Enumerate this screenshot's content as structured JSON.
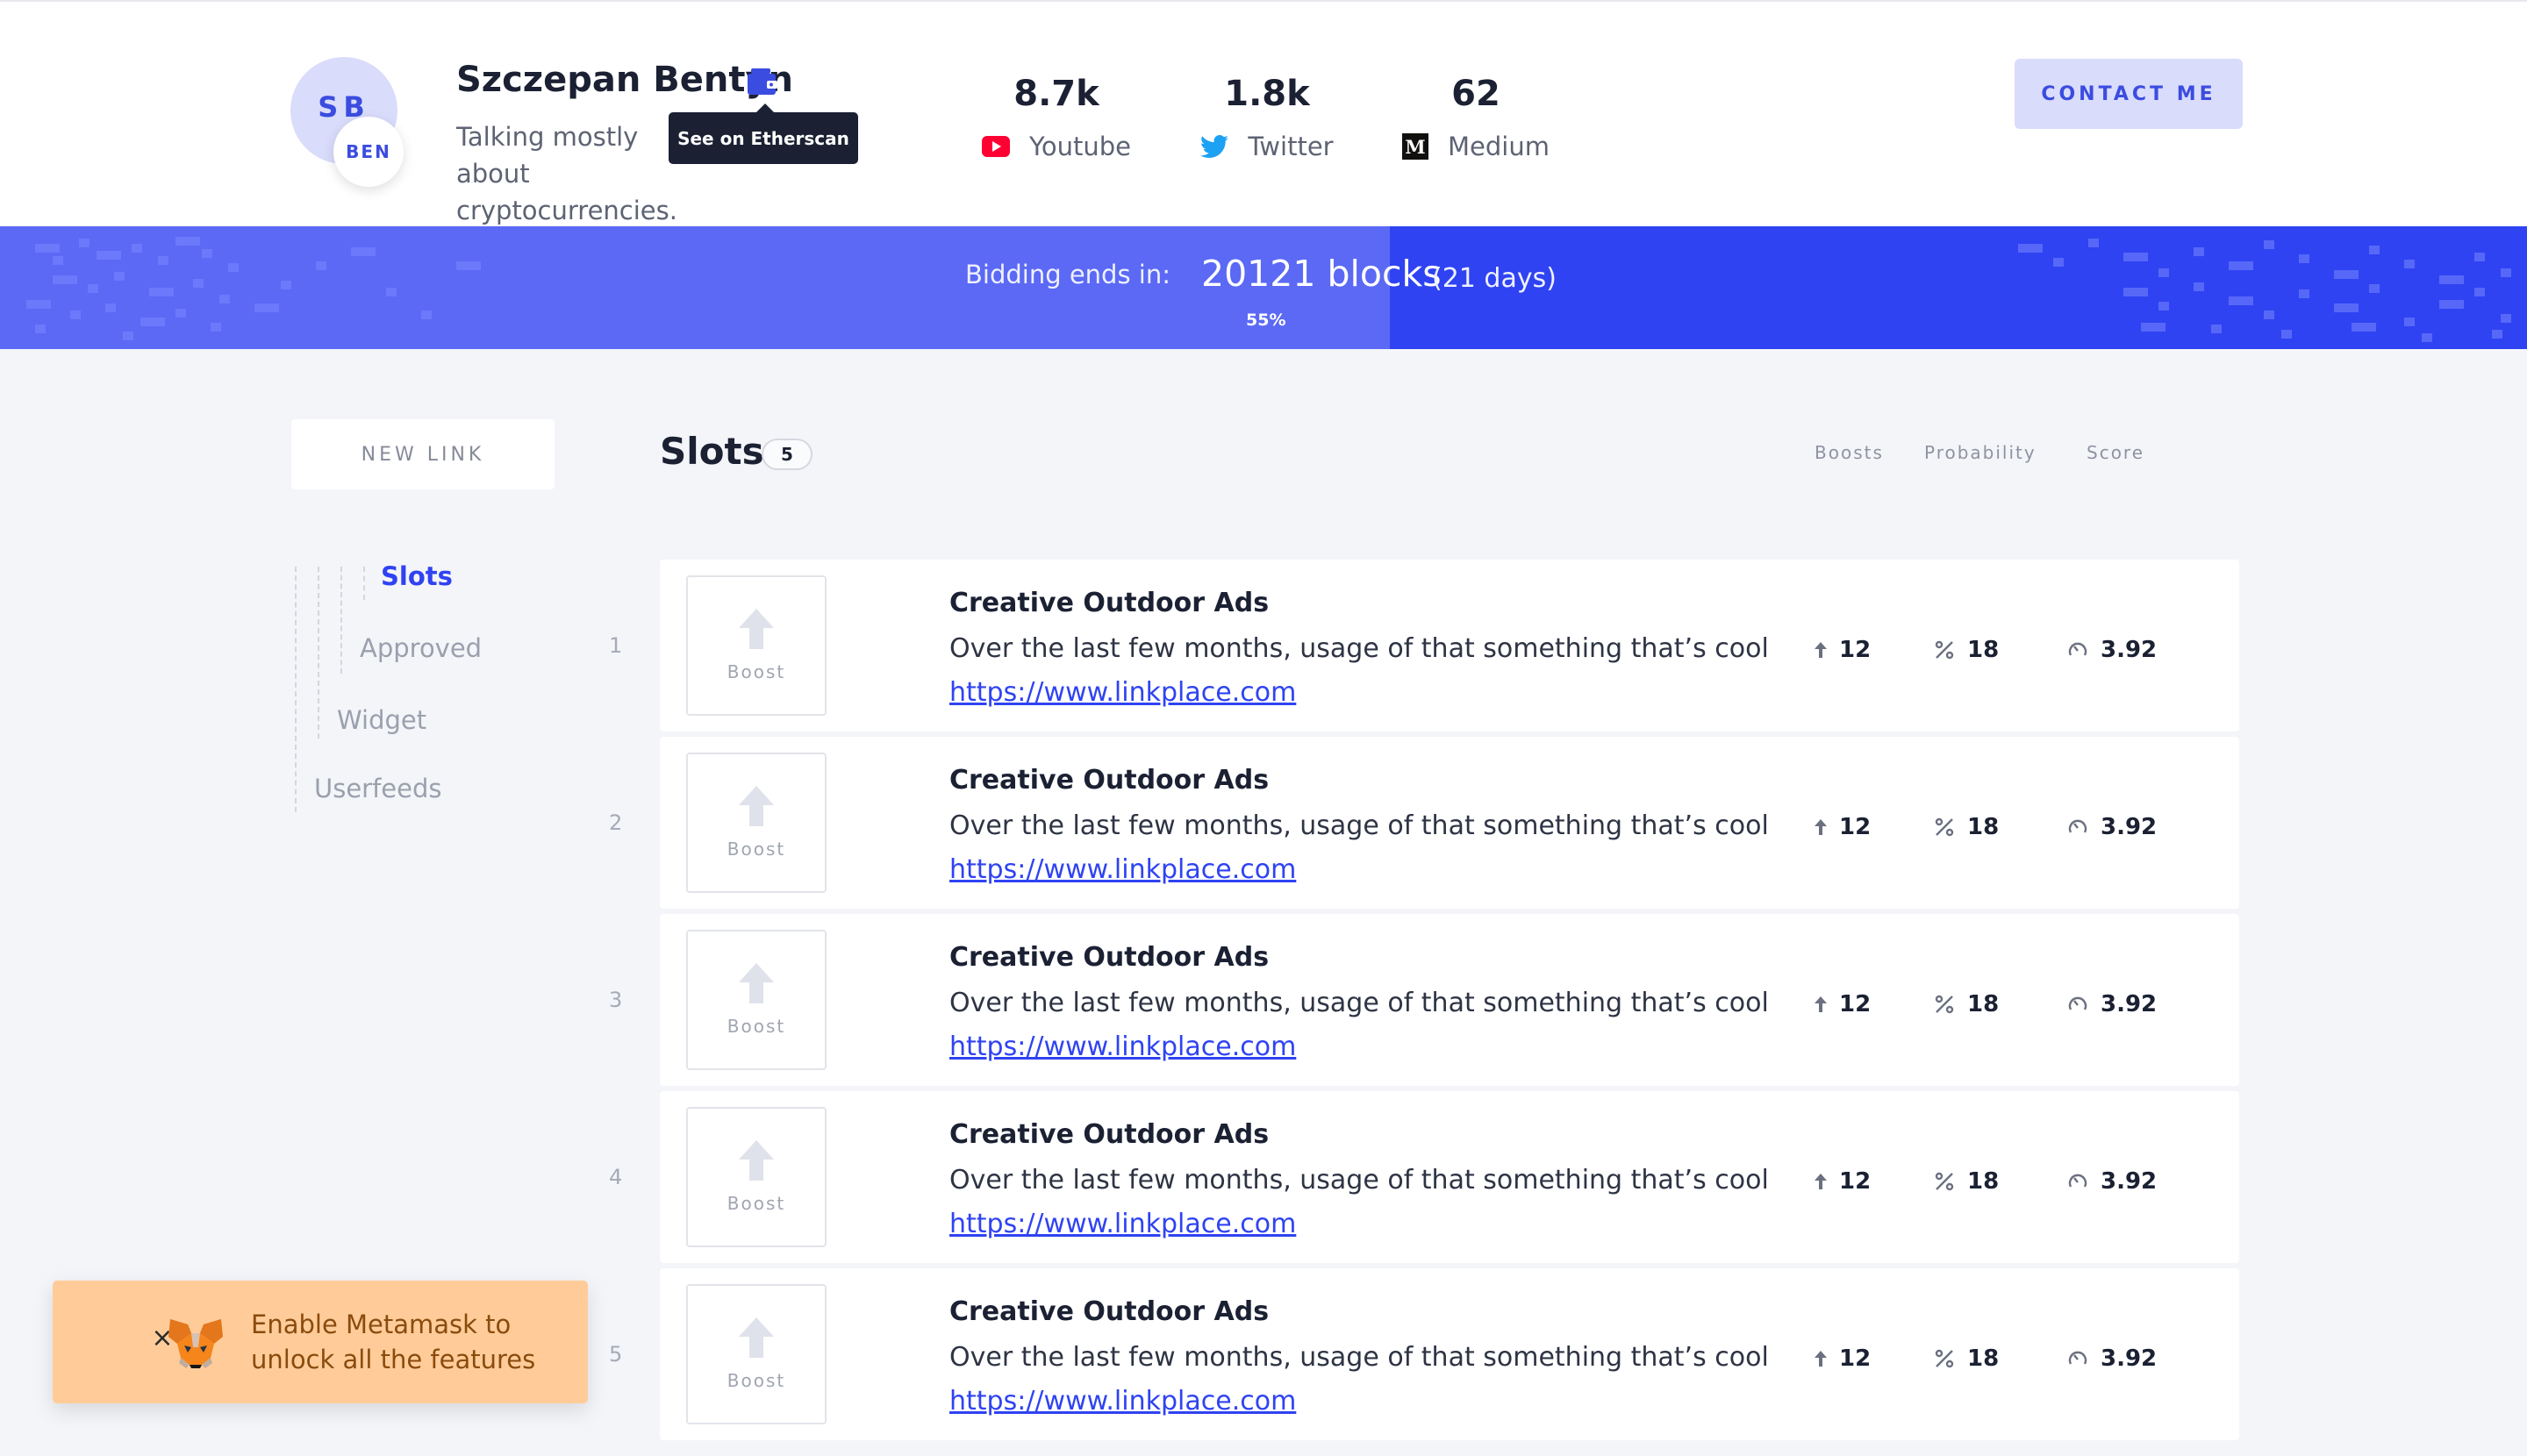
{
  "profile": {
    "initials": "SB",
    "badge": "BEN",
    "name": "Szczepan Bentyn",
    "bio": "Talking mostly about cryptocurrencies.",
    "tooltip": "See on Etherscan"
  },
  "stats": [
    {
      "value": "8.7k",
      "label": "Youtube",
      "icon": "youtube-icon",
      "color": "#ff0033"
    },
    {
      "value": "1.8k",
      "label": "Twitter",
      "icon": "twitter-icon",
      "color": "#1da1f2"
    },
    {
      "value": "62",
      "label": "Medium",
      "icon": "medium-icon",
      "color": "#12100e"
    }
  ],
  "header": {
    "contact_label": "CONTACT ME"
  },
  "bidding": {
    "label": "Bidding ends in:",
    "blocks": "20121 blocks",
    "days": "(21 days)",
    "progress_label": "55%",
    "progress": 0.55
  },
  "sidebar": {
    "new_link_label": "NEW LINK",
    "items": [
      {
        "label": "Slots",
        "active": true
      },
      {
        "label": "Approved"
      },
      {
        "label": "Widget"
      },
      {
        "label": "Userfeeds"
      }
    ]
  },
  "main": {
    "title": "Slots",
    "count": "5",
    "columns": [
      "Boosts",
      "Probability",
      "Score"
    ],
    "rows": [
      {
        "index": "1",
        "boost": "Boost",
        "title": "Creative Outdoor Ads",
        "desc": "Over the last few months, usage of that something that’s cool",
        "url": "https://www.linkplace.com",
        "boosts": "12",
        "probability": "18",
        "score": "3.92"
      },
      {
        "index": "2",
        "boost": "Boost",
        "title": "Creative Outdoor Ads",
        "desc": "Over the last few months, usage of that something that’s cool",
        "url": "https://www.linkplace.com",
        "boosts": "12",
        "probability": "18",
        "score": "3.92"
      },
      {
        "index": "3",
        "boost": "Boost",
        "title": "Creative Outdoor Ads",
        "desc": "Over the last few months, usage of that something that’s cool",
        "url": "https://www.linkplace.com",
        "boosts": "12",
        "probability": "18",
        "score": "3.92"
      },
      {
        "index": "4",
        "boost": "Boost",
        "title": "Creative Outdoor Ads",
        "desc": "Over the last few months, usage of that something that’s cool",
        "url": "https://www.linkplace.com",
        "boosts": "12",
        "probability": "18",
        "score": "3.92"
      },
      {
        "index": "5",
        "boost": "Boost",
        "title": "Creative Outdoor Ads",
        "desc": "Over the last few months, usage of that something that’s cool",
        "url": "https://www.linkplace.com",
        "boosts": "12",
        "probability": "18",
        "score": "3.92"
      }
    ]
  },
  "toast": {
    "line1": "Enable Metamask to",
    "line2": "unlock all the features",
    "icon": "metamask-fox-icon"
  },
  "colors": {
    "accent": "#2f43f2",
    "accent_light": "#d9dcfb",
    "toast_bg": "#ffcc99"
  }
}
